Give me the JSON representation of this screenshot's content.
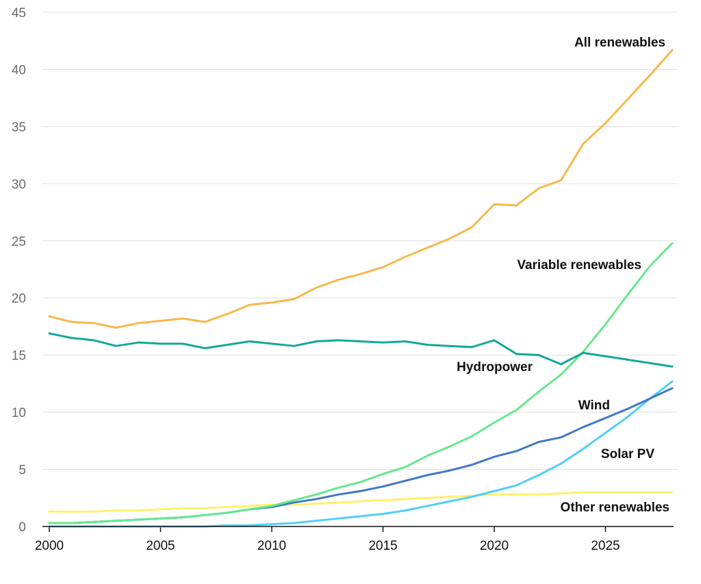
{
  "chart_data": {
    "type": "line",
    "title": "",
    "xlabel": "",
    "ylabel": "",
    "xlim": [
      2000,
      2028
    ],
    "ylim": [
      0,
      45
    ],
    "x_ticks": [
      "2000",
      "2005",
      "2010",
      "2015",
      "2020",
      "2025"
    ],
    "y_ticks": [
      "0",
      "5",
      "10",
      "15",
      "20",
      "25",
      "30",
      "35",
      "40",
      "45"
    ],
    "x": [
      2000,
      2001,
      2002,
      2003,
      2004,
      2005,
      2006,
      2007,
      2008,
      2009,
      2010,
      2011,
      2012,
      2013,
      2014,
      2015,
      2016,
      2017,
      2018,
      2019,
      2020,
      2021,
      2022,
      2023,
      2024,
      2025,
      2026,
      2027,
      2028
    ],
    "series": [
      {
        "name": "All renewables",
        "color": "#f7b84b",
        "values": [
          18.4,
          17.9,
          17.8,
          17.4,
          17.8,
          18.0,
          18.2,
          17.9,
          18.6,
          19.4,
          19.6,
          19.9,
          20.9,
          21.6,
          22.1,
          22.7,
          23.6,
          24.4,
          25.2,
          26.2,
          28.2,
          28.1,
          29.6,
          30.3,
          33.5,
          35.3,
          37.4,
          39.5,
          41.7
        ]
      },
      {
        "name": "Hydropower",
        "color": "#12a89a",
        "values": [
          16.9,
          16.5,
          16.3,
          15.8,
          16.1,
          16.0,
          16.0,
          15.6,
          15.9,
          16.2,
          16.0,
          15.8,
          16.2,
          16.3,
          16.2,
          16.1,
          16.2,
          15.9,
          15.8,
          15.7,
          16.3,
          15.1,
          15.0,
          14.2,
          15.2,
          14.9,
          14.6,
          14.3,
          14.0
        ]
      },
      {
        "name": "Variable renewables",
        "color": "#65e88c",
        "values": [
          0.3,
          0.3,
          0.4,
          0.5,
          0.6,
          0.7,
          0.8,
          1.0,
          1.2,
          1.5,
          1.8,
          2.3,
          2.8,
          3.4,
          3.9,
          4.6,
          5.2,
          6.2,
          7.0,
          7.9,
          9.1,
          10.2,
          11.8,
          13.3,
          15.3,
          17.7,
          20.3,
          22.8,
          24.8
        ]
      },
      {
        "name": "Wind",
        "color": "#3f78c9",
        "values": [
          0.3,
          0.3,
          0.4,
          0.5,
          0.6,
          0.7,
          0.8,
          1.0,
          1.2,
          1.5,
          1.7,
          2.1,
          2.4,
          2.8,
          3.1,
          3.5,
          4.0,
          4.5,
          4.9,
          5.4,
          6.1,
          6.6,
          7.4,
          7.8,
          8.7,
          9.5,
          10.3,
          11.2,
          12.1
        ]
      },
      {
        "name": "Solar PV",
        "color": "#4fd0f5",
        "values": [
          0.0,
          0.0,
          0.0,
          0.0,
          0.0,
          0.0,
          0.0,
          0.0,
          0.1,
          0.1,
          0.2,
          0.3,
          0.5,
          0.7,
          0.9,
          1.1,
          1.4,
          1.8,
          2.2,
          2.6,
          3.1,
          3.6,
          4.5,
          5.5,
          6.8,
          8.2,
          9.6,
          11.2,
          12.7
        ]
      },
      {
        "name": "Other renewables",
        "color": "#fff16a",
        "values": [
          1.3,
          1.3,
          1.3,
          1.4,
          1.4,
          1.5,
          1.6,
          1.6,
          1.7,
          1.8,
          1.9,
          1.9,
          2.0,
          2.1,
          2.2,
          2.3,
          2.4,
          2.5,
          2.6,
          2.7,
          2.8,
          2.8,
          2.8,
          2.9,
          3.0,
          3.0,
          3.0,
          3.0,
          3.0
        ]
      }
    ],
    "annotations": {
      "all_renewables": "All renewables",
      "variable_renewables": "Variable renewables",
      "hydropower": "Hydropower",
      "wind": "Wind",
      "solar_pv": "Solar PV",
      "other_renewables": "Other renewables"
    },
    "grid": true,
    "legend": "none (inline labels)"
  }
}
